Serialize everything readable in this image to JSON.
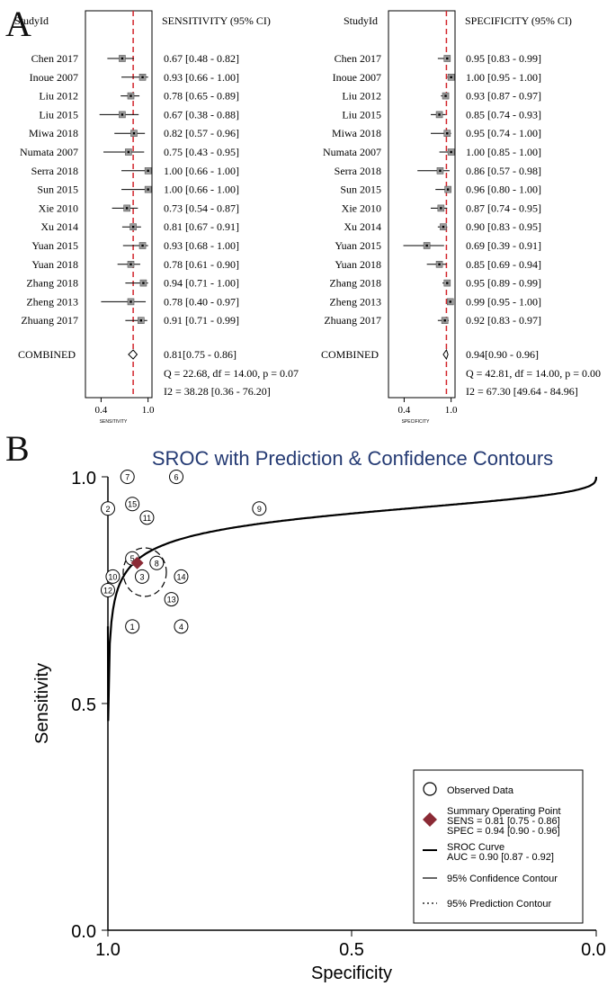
{
  "panel_a": {
    "letter": "A",
    "header_studyid": "StudyId",
    "sensitivity": {
      "header": "SENSITIVITY (95% CI)",
      "axis_label": "SENSITIVITY",
      "ticks": [
        "0.4",
        "1.0"
      ],
      "vline": 0.81,
      "combined_label": "COMBINED",
      "combined_text": "0.81[0.75 - 0.86]",
      "combined": {
        "est": 0.81,
        "lo": 0.75,
        "hi": 0.86
      },
      "q_text": "Q = 22.68, df = 14.00, p =  0.07",
      "i2_text": "I2 = 38.28 [0.36 - 76.20]"
    },
    "specificity": {
      "header": "SPECIFICITY (95% CI)",
      "axis_label": "SPECIFICITY",
      "ticks": [
        "0.4",
        "1.0"
      ],
      "vline": 0.94,
      "combined_label": "COMBINED",
      "combined_text": "0.94[0.90 - 0.96]",
      "combined": {
        "est": 0.94,
        "lo": 0.9,
        "hi": 0.96
      },
      "q_text": "Q = 42.81, df = 14.00, p =  0.00",
      "i2_text": "I2 = 67.30 [49.64 - 84.96]"
    },
    "studies": [
      {
        "name": "Chen 2017",
        "sens_text": "0.67 [0.48 - 0.82]",
        "sens": [
          0.67,
          0.48,
          0.82
        ],
        "spec_text": "0.95 [0.83 - 0.99]",
        "spec": [
          0.95,
          0.83,
          0.99
        ]
      },
      {
        "name": "Inoue 2007",
        "sens_text": "0.93 [0.66 - 1.00]",
        "sens": [
          0.93,
          0.66,
          1.0
        ],
        "spec_text": "1.00 [0.95 - 1.00]",
        "spec": [
          1.0,
          0.95,
          1.0
        ]
      },
      {
        "name": "Liu 2012",
        "sens_text": "0.78 [0.65 - 0.89]",
        "sens": [
          0.78,
          0.65,
          0.89
        ],
        "spec_text": "0.93 [0.87 - 0.97]",
        "spec": [
          0.93,
          0.87,
          0.97
        ]
      },
      {
        "name": "Liu 2015",
        "sens_text": "0.67 [0.38 - 0.88]",
        "sens": [
          0.67,
          0.38,
          0.88
        ],
        "spec_text": "0.85 [0.74 - 0.93]",
        "spec": [
          0.85,
          0.74,
          0.93
        ]
      },
      {
        "name": "Miwa 2018",
        "sens_text": "0.82 [0.57 - 0.96]",
        "sens": [
          0.82,
          0.57,
          0.96
        ],
        "spec_text": "0.95 [0.74 - 1.00]",
        "spec": [
          0.95,
          0.74,
          1.0
        ]
      },
      {
        "name": "Numata 2007",
        "sens_text": "0.75 [0.43 - 0.95]",
        "sens": [
          0.75,
          0.43,
          0.95
        ],
        "spec_text": "1.00 [0.85 - 1.00]",
        "spec": [
          1.0,
          0.85,
          1.0
        ]
      },
      {
        "name": "Serra 2018",
        "sens_text": "1.00 [0.66 - 1.00]",
        "sens": [
          1.0,
          0.66,
          1.0
        ],
        "spec_text": "0.86 [0.57 - 0.98]",
        "spec": [
          0.86,
          0.57,
          0.98
        ]
      },
      {
        "name": "Sun 2015",
        "sens_text": "1.00 [0.66 - 1.00]",
        "sens": [
          1.0,
          0.66,
          1.0
        ],
        "spec_text": "0.96 [0.80 - 1.00]",
        "spec": [
          0.96,
          0.8,
          1.0
        ]
      },
      {
        "name": "Xie 2010",
        "sens_text": "0.73 [0.54 - 0.87]",
        "sens": [
          0.73,
          0.54,
          0.87
        ],
        "spec_text": "0.87 [0.74 - 0.95]",
        "spec": [
          0.87,
          0.74,
          0.95
        ]
      },
      {
        "name": "Xu 2014",
        "sens_text": "0.81 [0.67 - 0.91]",
        "sens": [
          0.81,
          0.67,
          0.91
        ],
        "spec_text": "0.90 [0.83 - 0.95]",
        "spec": [
          0.9,
          0.83,
          0.95
        ]
      },
      {
        "name": "Yuan 2015",
        "sens_text": "0.93 [0.68 - 1.00]",
        "sens": [
          0.93,
          0.68,
          1.0
        ],
        "spec_text": "0.69 [0.39 - 0.91]",
        "spec": [
          0.69,
          0.39,
          0.91
        ]
      },
      {
        "name": "Yuan 2018",
        "sens_text": "0.78 [0.61 - 0.90]",
        "sens": [
          0.78,
          0.61,
          0.9
        ],
        "spec_text": "0.85 [0.69 - 0.94]",
        "spec": [
          0.85,
          0.69,
          0.94
        ]
      },
      {
        "name": "Zhang 2018",
        "sens_text": "0.94 [0.71 - 1.00]",
        "sens": [
          0.94,
          0.71,
          1.0
        ],
        "spec_text": "0.95 [0.89 - 0.99]",
        "spec": [
          0.95,
          0.89,
          0.99
        ]
      },
      {
        "name": "Zheng 2013",
        "sens_text": "0.78 [0.40 - 0.97]",
        "sens": [
          0.78,
          0.4,
          0.97
        ],
        "spec_text": "0.99 [0.95 - 1.00]",
        "spec": [
          0.99,
          0.95,
          1.0
        ]
      },
      {
        "name": "Zhuang 2017",
        "sens_text": "0.91 [0.71 - 0.99]",
        "sens": [
          0.91,
          0.71,
          0.99
        ],
        "spec_text": "0.92 [0.83 - 0.97]",
        "spec": [
          0.92,
          0.83,
          0.97
        ]
      }
    ]
  },
  "chart_data": [
    {
      "type": "forest",
      "title": "SENSITIVITY (95% CI)",
      "xlabel": "SENSITIVITY",
      "xlim": [
        0.2,
        1.05
      ],
      "categories": [
        "Chen 2017",
        "Inoue 2007",
        "Liu 2012",
        "Liu 2015",
        "Miwa 2018",
        "Numata 2007",
        "Serra 2018",
        "Sun 2015",
        "Xie 2010",
        "Xu 2014",
        "Yuan 2015",
        "Yuan 2018",
        "Zhang 2018",
        "Zheng 2013",
        "Zhuang 2017"
      ],
      "values": [
        0.67,
        0.93,
        0.78,
        0.67,
        0.82,
        0.75,
        1.0,
        1.0,
        0.73,
        0.81,
        0.93,
        0.78,
        0.94,
        0.78,
        0.91
      ],
      "pooled": 0.81
    },
    {
      "type": "forest",
      "title": "SPECIFICITY (95% CI)",
      "xlabel": "SPECIFICITY",
      "xlim": [
        0.2,
        1.05
      ],
      "categories": [
        "Chen 2017",
        "Inoue 2007",
        "Liu 2012",
        "Liu 2015",
        "Miwa 2018",
        "Numata 2007",
        "Serra 2018",
        "Sun 2015",
        "Xie 2010",
        "Xu 2014",
        "Yuan 2015",
        "Yuan 2018",
        "Zhang 2018",
        "Zheng 2013",
        "Zhuang 2017"
      ],
      "values": [
        0.95,
        1.0,
        0.93,
        0.85,
        0.95,
        1.0,
        0.86,
        0.96,
        0.87,
        0.9,
        0.69,
        0.85,
        0.95,
        0.99,
        0.92
      ],
      "pooled": 0.94
    },
    {
      "type": "scatter",
      "title": "SROC with Prediction & Confidence Contours",
      "xlabel": "Specificity",
      "ylabel": "Sensitivity",
      "xlim": [
        1.0,
        0.0
      ],
      "ylim": [
        0.0,
        1.0
      ],
      "xticks": [
        "1.0",
        "0.5",
        "0.0"
      ],
      "yticks": [
        "0.0",
        "0.5",
        "1.0"
      ],
      "points": [
        {
          "id": "1",
          "spec": 0.95,
          "sens": 0.67
        },
        {
          "id": "2",
          "spec": 1.0,
          "sens": 0.93
        },
        {
          "id": "3",
          "spec": 0.93,
          "sens": 0.78
        },
        {
          "id": "4",
          "spec": 0.85,
          "sens": 0.67
        },
        {
          "id": "5",
          "spec": 0.95,
          "sens": 0.82
        },
        {
          "id": "6",
          "spec": 0.86,
          "sens": 1.0
        },
        {
          "id": "7",
          "spec": 0.96,
          "sens": 1.0
        },
        {
          "id": "8",
          "spec": 0.9,
          "sens": 0.81
        },
        {
          "id": "9",
          "spec": 0.69,
          "sens": 0.93
        },
        {
          "id": "10",
          "spec": 0.99,
          "sens": 0.78
        },
        {
          "id": "11",
          "spec": 0.92,
          "sens": 0.91
        },
        {
          "id": "12",
          "spec": 1.0,
          "sens": 0.75
        },
        {
          "id": "13",
          "spec": 0.87,
          "sens": 0.73
        },
        {
          "id": "14",
          "spec": 0.85,
          "sens": 0.78
        },
        {
          "id": "15",
          "spec": 0.95,
          "sens": 0.94
        }
      ],
      "summary_point": {
        "spec": 0.94,
        "sens": 0.81
      },
      "colors": {
        "summary": "#8B2A35",
        "title": "#243a73"
      }
    }
  ],
  "panel_b": {
    "letter": "B",
    "title": "SROC with Prediction & Confidence Contours",
    "xlabel": "Specificity",
    "ylabel": "Sensitivity",
    "legend": {
      "observed": "Observed Data",
      "sop_title": "Summary Operating Point",
      "sop_sens": "SENS = 0.81 [0.75 - 0.86]",
      "sop_spec": "SPEC = 0.94 [0.90 - 0.96]",
      "sroc_title": "SROC Curve",
      "sroc_auc": "AUC = 0.90 [0.87 - 0.92]",
      "conf": "95% Confidence Contour",
      "pred": "95% Prediction Contour"
    }
  }
}
